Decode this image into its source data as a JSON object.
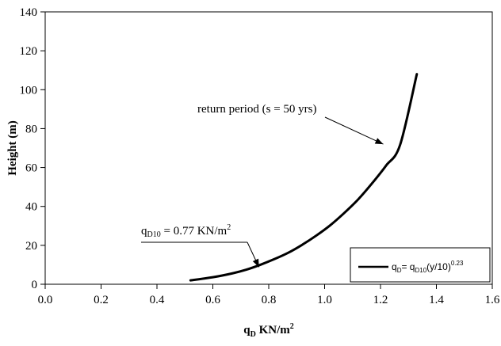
{
  "chart_data": {
    "type": "line",
    "title": "",
    "xlabel": {
      "main": "q",
      "sub": "D",
      "rest": " KN/m",
      "sup": "2"
    },
    "ylabel": "Height (m)",
    "xlim": [
      0.0,
      1.6
    ],
    "ylim": [
      0,
      140
    ],
    "xticks": [
      "0.0",
      "0.2",
      "0.4",
      "0.6",
      "0.8",
      "1.0",
      "1.2",
      "1.4",
      "1.6"
    ],
    "yticks": [
      "0",
      "20",
      "40",
      "60",
      "80",
      "100",
      "120",
      "140"
    ],
    "grid": false,
    "series": [
      {
        "color": "#000000",
        "x": [
          0.52,
          0.6,
          0.67,
          0.72,
          0.77,
          0.82,
          0.87,
          0.92,
          0.97,
          1.02,
          1.07,
          1.12,
          1.17,
          1.22,
          1.27,
          1.33
        ],
        "y": [
          2,
          3.6,
          5.6,
          7.5,
          10,
          12.9,
          16.2,
          20.3,
          25,
          30.3,
          36.6,
          43.6,
          51.9,
          61,
          71.6,
          108
        ]
      }
    ],
    "legend": {
      "position": "bottom-right",
      "label": {
        "a": "q",
        "a_sub": "D",
        "b": "= q",
        "b_sub": "D10",
        "c": "(y/10)",
        "c_sup": "0.23"
      }
    },
    "annotations": [
      {
        "id": "return-period",
        "text": "return period (s = 50 yrs)",
        "target": [
          1.21,
          72
        ]
      },
      {
        "id": "qd10",
        "text": {
          "a": "q",
          "a_sub": "D10",
          "b": " = 0.77 KN/m",
          "b_sup": "2"
        },
        "target": [
          0.765,
          8.8
        ]
      }
    ]
  }
}
